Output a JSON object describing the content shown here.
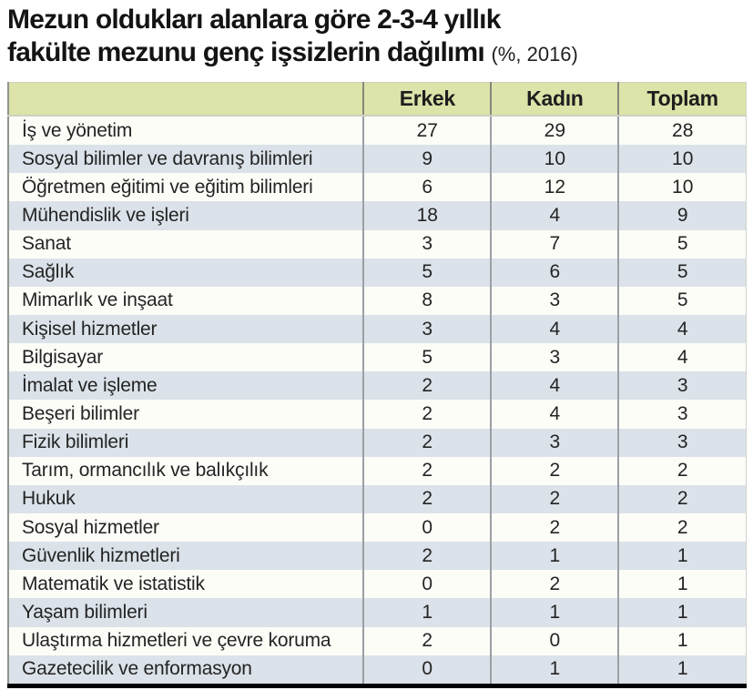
{
  "title": {
    "line1": "Mezun oldukları alanlara göre 2-3-4 yıllık",
    "line2": "fakülte mezunu genç işsizlerin dağılımı",
    "suffix": "(%, 2016)"
  },
  "table": {
    "headers": [
      "",
      "Erkek",
      "Kadın",
      "Toplam"
    ],
    "rows": [
      {
        "label": "İş ve yönetim",
        "values": [
          27,
          29,
          28
        ]
      },
      {
        "label": "Sosyal bilimler ve davranış bilimleri",
        "values": [
          9,
          10,
          10
        ]
      },
      {
        "label": "Öğretmen eğitimi ve eğitim bilimleri",
        "values": [
          6,
          12,
          10
        ]
      },
      {
        "label": "Mühendislik ve işleri",
        "values": [
          18,
          4,
          9
        ]
      },
      {
        "label": "Sanat",
        "values": [
          3,
          7,
          5
        ]
      },
      {
        "label": "Sağlık",
        "values": [
          5,
          6,
          5
        ]
      },
      {
        "label": "Mimarlık ve inşaat",
        "values": [
          8,
          3,
          5
        ]
      },
      {
        "label": "Kişisel hizmetler",
        "values": [
          3,
          4,
          4
        ]
      },
      {
        "label": "Bilgisayar",
        "values": [
          5,
          3,
          4
        ]
      },
      {
        "label": "İmalat ve işleme",
        "values": [
          2,
          4,
          3
        ]
      },
      {
        "label": "Beşeri bilimler",
        "values": [
          2,
          4,
          3
        ]
      },
      {
        "label": "Fizik bilimleri",
        "values": [
          2,
          3,
          3
        ]
      },
      {
        "label": "Tarım, ormancılık ve balıkçılık",
        "values": [
          2,
          2,
          2
        ]
      },
      {
        "label": "Hukuk",
        "values": [
          2,
          2,
          2
        ]
      },
      {
        "label": "Sosyal hizmetler",
        "values": [
          0,
          2,
          2
        ]
      },
      {
        "label": "Güvenlik hizmetleri",
        "values": [
          2,
          1,
          1
        ]
      },
      {
        "label": "Matematik ve istatistik",
        "values": [
          0,
          2,
          1
        ]
      },
      {
        "label": "Yaşam bilimleri",
        "values": [
          1,
          1,
          1
        ]
      },
      {
        "label": "Ulaştırma hizmetleri ve çevre koruma",
        "values": [
          2,
          0,
          1
        ]
      },
      {
        "label": "Gazetecilik ve enformasyon",
        "values": [
          0,
          1,
          1
        ]
      }
    ]
  },
  "colors": {
    "header_bg": "#dde3a9",
    "row_bg": "#fdfdf8",
    "alt_row_bg": "#dbe2e9",
    "divider": "#9aa0a4",
    "bottom_border": "#000000",
    "text": "#242424"
  },
  "chart_data": {
    "type": "table",
    "title": "Mezun oldukları alanlara göre 2-3-4 yıllık fakülte mezunu genç işsizlerin dağılımı",
    "subtitle": "(%, 2016)",
    "columns": [
      "Erkek",
      "Kadın",
      "Toplam"
    ],
    "categories": [
      "İş ve yönetim",
      "Sosyal bilimler ve davranış bilimleri",
      "Öğretmen eğitimi ve eğitim bilimleri",
      "Mühendislik ve işleri",
      "Sanat",
      "Sağlık",
      "Mimarlık ve inşaat",
      "Kişisel hizmetler",
      "Bilgisayar",
      "İmalat ve işleme",
      "Beşeri bilimler",
      "Fizik bilimleri",
      "Tarım, ormancılık ve balıkçılık",
      "Hukuk",
      "Sosyal hizmetler",
      "Güvenlik hizmetleri",
      "Matematik ve istatistik",
      "Yaşam bilimleri",
      "Ulaştırma hizmetleri ve çevre koruma",
      "Gazetecilik ve enformasyon"
    ],
    "series": [
      {
        "name": "Erkek",
        "values": [
          27,
          9,
          6,
          18,
          3,
          5,
          8,
          3,
          5,
          2,
          2,
          2,
          2,
          2,
          0,
          2,
          0,
          1,
          2,
          0
        ]
      },
      {
        "name": "Kadın",
        "values": [
          29,
          10,
          12,
          4,
          7,
          6,
          3,
          4,
          3,
          4,
          4,
          3,
          2,
          2,
          2,
          1,
          2,
          1,
          0,
          1
        ]
      },
      {
        "name": "Toplam",
        "values": [
          28,
          10,
          10,
          9,
          5,
          5,
          5,
          4,
          4,
          3,
          3,
          3,
          2,
          2,
          2,
          1,
          1,
          1,
          1,
          1
        ]
      }
    ]
  }
}
